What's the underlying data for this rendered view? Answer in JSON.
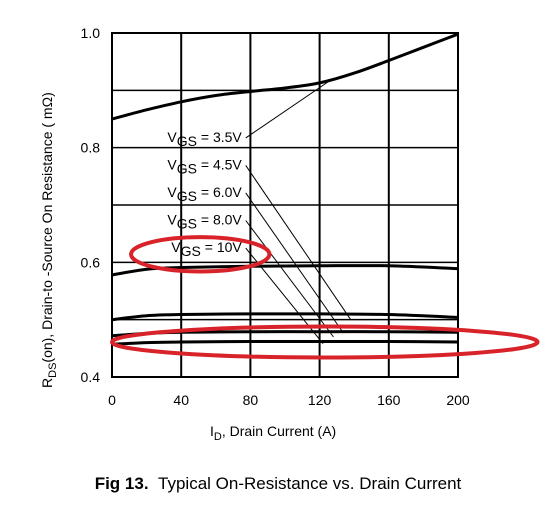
{
  "caption": {
    "label": "Fig 13.",
    "text": "Typical On-Resistance vs. Drain Current"
  },
  "chart_data": {
    "type": "line",
    "title": "",
    "xlabel": {
      "main": "I",
      "sub": "D",
      "rest": ", Drain Current (A)"
    },
    "ylabel": {
      "main": "R",
      "sub": "DS",
      "rest": "(on), Drain-to -Source On Resistance ( mΩ)"
    },
    "xlim": [
      0,
      200
    ],
    "ylim": [
      0.4,
      1.0
    ],
    "xticks": [
      0,
      40,
      80,
      120,
      160,
      200
    ],
    "yticks": [
      0.4,
      0.6,
      0.8,
      1.0
    ],
    "ytick_labels": [
      "0.4",
      "0.6",
      "0.8",
      "1.0"
    ],
    "grid": true,
    "series": [
      {
        "name": "VGS = 3.5V",
        "label_main": "V",
        "label_sub": "GS",
        "label_rest": " = 3.5V",
        "x": [
          0,
          20,
          40,
          60,
          80,
          100,
          120,
          140,
          160,
          180,
          200
        ],
        "y": [
          0.85,
          0.866,
          0.88,
          0.891,
          0.898,
          0.904,
          0.913,
          0.93,
          0.952,
          0.975,
          0.998
        ]
      },
      {
        "name": "VGS = 4.5V",
        "label_main": "V",
        "label_sub": "GS",
        "label_rest": " = 4.5V",
        "x": [
          0,
          20,
          40,
          80,
          120,
          160,
          200
        ],
        "y": [
          0.578,
          0.588,
          0.591,
          0.593,
          0.594,
          0.594,
          0.589
        ]
      },
      {
        "name": "VGS = 6.0V",
        "label_main": "V",
        "label_sub": "GS",
        "label_rest": " = 6.0V",
        "x": [
          0,
          20,
          40,
          80,
          120,
          160,
          200
        ],
        "y": [
          0.5,
          0.507,
          0.509,
          0.51,
          0.51,
          0.509,
          0.504
        ]
      },
      {
        "name": "VGS = 8.0V",
        "label_main": "V",
        "label_sub": "GS",
        "label_rest": " = 8.0V",
        "x": [
          0,
          20,
          40,
          80,
          120,
          160,
          200
        ],
        "y": [
          0.472,
          0.476,
          0.478,
          0.479,
          0.479,
          0.479,
          0.478
        ]
      },
      {
        "name": "VGS = 10V",
        "label_main": "V",
        "label_sub": "GS",
        "label_rest": " = 10V",
        "x": [
          0,
          20,
          40,
          80,
          120,
          160,
          200
        ],
        "y": [
          0.457,
          0.46,
          0.461,
          0.462,
          0.462,
          0.462,
          0.461
        ]
      }
    ],
    "annotations": [
      {
        "series": "VGS = 3.5V",
        "label_at": [
          75,
          0.81
        ],
        "target": [
          125,
          0.915
        ]
      },
      {
        "series": "VGS = 4.5V",
        "label_at": [
          75,
          0.762
        ],
        "target": [
          138,
          0.5
        ]
      },
      {
        "series": "VGS = 6.0V",
        "label_at": [
          75,
          0.714
        ],
        "target": [
          133,
          0.48
        ]
      },
      {
        "series": "VGS = 8.0V",
        "label_at": [
          75,
          0.666
        ],
        "target": [
          128,
          0.47
        ]
      },
      {
        "series": "VGS = 10V",
        "label_at": [
          75,
          0.618
        ],
        "target": [
          122,
          0.458
        ]
      }
    ],
    "highlights": [
      {
        "shape": "ellipse",
        "cx": 51,
        "cy": 0.614,
        "rx": 40,
        "ry": 0.03,
        "color": "#d8232a"
      },
      {
        "shape": "ellipse",
        "cx": 123,
        "cy": 0.461,
        "rx": 123,
        "ry": 0.027,
        "color": "#d8232a"
      }
    ]
  }
}
